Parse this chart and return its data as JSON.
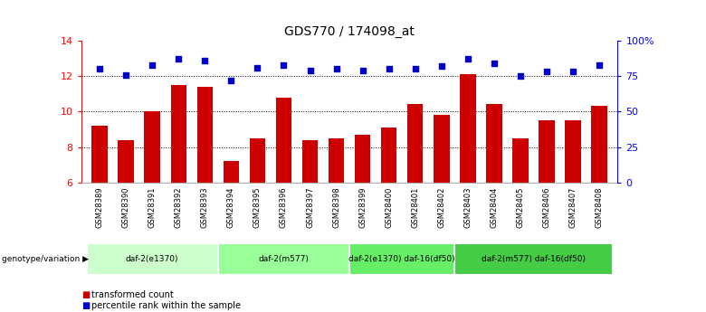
{
  "title": "GDS770 / 174098_at",
  "categories": [
    "GSM28389",
    "GSM28390",
    "GSM28391",
    "GSM28392",
    "GSM28393",
    "GSM28394",
    "GSM28395",
    "GSM28396",
    "GSM28397",
    "GSM28398",
    "GSM28399",
    "GSM28400",
    "GSM28401",
    "GSM28402",
    "GSM28403",
    "GSM28404",
    "GSM28405",
    "GSM28406",
    "GSM28407",
    "GSM28408"
  ],
  "bar_values": [
    9.2,
    8.4,
    10.0,
    11.5,
    11.4,
    7.2,
    8.5,
    10.8,
    8.4,
    8.5,
    8.7,
    9.1,
    10.4,
    9.8,
    12.1,
    10.4,
    8.5,
    9.5,
    9.5,
    10.3
  ],
  "percentile_values": [
    80,
    76,
    83,
    87,
    86,
    72,
    81,
    83,
    79,
    80,
    79,
    80,
    80,
    82,
    87,
    84,
    75,
    78,
    78,
    83
  ],
  "bar_color": "#cc0000",
  "dot_color": "#0000cc",
  "ylim_left": [
    6,
    14
  ],
  "ylim_right": [
    0,
    100
  ],
  "yticks_left": [
    6,
    8,
    10,
    12,
    14
  ],
  "yticks_right": [
    0,
    25,
    50,
    75,
    100
  ],
  "ytick_labels_right": [
    "0",
    "25",
    "50",
    "75",
    "100%"
  ],
  "grid_values": [
    8,
    10,
    12
  ],
  "groups": [
    {
      "label": "daf-2(e1370)",
      "start": 0,
      "end": 5,
      "color": "#ccffcc"
    },
    {
      "label": "daf-2(m577)",
      "start": 5,
      "end": 10,
      "color": "#99ff99"
    },
    {
      "label": "daf-2(e1370) daf-16(df50)",
      "start": 10,
      "end": 14,
      "color": "#66ee66"
    },
    {
      "label": "daf-2(m577) daf-16(df50)",
      "start": 14,
      "end": 20,
      "color": "#44cc44"
    }
  ],
  "legend_bar_label": "transformed count",
  "legend_dot_label": "percentile rank within the sample",
  "genotype_label": "genotype/variation",
  "background_color": "#ffffff",
  "plot_bg_color": "#ffffff",
  "xtick_bg_color": "#c8c8c8",
  "group_border_color": "#ffffff"
}
